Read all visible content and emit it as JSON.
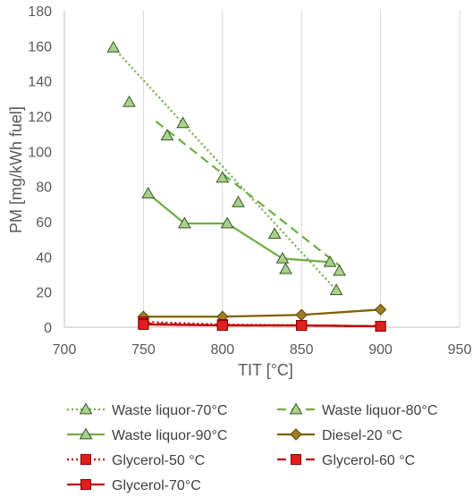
{
  "chart_data": {
    "type": "line",
    "xlabel": "TIT [°C]",
    "ylabel": "PM [mg/kWh fuel]",
    "xlim": [
      700,
      950
    ],
    "ylim": [
      0,
      180
    ],
    "x_ticks": [
      "700",
      "750",
      "800",
      "850",
      "900",
      "950"
    ],
    "y_ticks": [
      "0",
      "20",
      "40",
      "60",
      "80",
      "100",
      "120",
      "140",
      "160",
      "180"
    ],
    "grid": "vertical",
    "legend_position": "bottom",
    "series": [
      {
        "name": "Waste liquor-70°C",
        "color": "#70ad47",
        "marker_fill": "#a9d18e",
        "marker_edge": "#375623",
        "marker": "triangle",
        "line_style": "dotted",
        "line_points": [
          [
            731,
            159
          ],
          [
            872,
            21
          ]
        ],
        "points": [
          [
            731,
            159
          ],
          [
            741,
            128
          ],
          [
            775,
            116
          ],
          [
            810,
            71
          ],
          [
            872,
            21
          ]
        ]
      },
      {
        "name": "Waste liquor-80°C",
        "color": "#70ad47",
        "marker_fill": "#a9d18e",
        "marker_edge": "#375623",
        "marker": "triangle",
        "line_style": "dashed",
        "line_points": [
          [
            758,
            117
          ],
          [
            874,
            35
          ]
        ],
        "points": [
          [
            765,
            109
          ],
          [
            800,
            85
          ],
          [
            833,
            53
          ],
          [
            874,
            32
          ]
        ]
      },
      {
        "name": "Waste liquor-90°C",
        "color": "#70ad47",
        "marker_fill": "#a9d18e",
        "marker_edge": "#375623",
        "marker": "triangle",
        "line_style": "solid",
        "line_points": [
          [
            753,
            76
          ],
          [
            776,
            59
          ],
          [
            803,
            59
          ],
          [
            838,
            39
          ],
          [
            868,
            37
          ]
        ],
        "points": [
          [
            753,
            76
          ],
          [
            776,
            59
          ],
          [
            803,
            59
          ],
          [
            838,
            39
          ],
          [
            840,
            33
          ],
          [
            868,
            37
          ]
        ]
      },
      {
        "name": "Diesel-20 °C",
        "color": "#806000",
        "marker_fill": "#a07c28",
        "marker_edge": "#5a4300",
        "marker": "diamond",
        "line_style": "solid",
        "line_points": [
          [
            750,
            6
          ],
          [
            800,
            6
          ],
          [
            850,
            7
          ],
          [
            900,
            10
          ]
        ],
        "points": [
          [
            750,
            6
          ],
          [
            800,
            6
          ],
          [
            850,
            7
          ],
          [
            900,
            10
          ]
        ]
      },
      {
        "name": "Glycerol-50 °C",
        "color": "#c00000",
        "marker_fill": "#e02020",
        "marker_edge": "#8b0000",
        "marker": "square",
        "line_style": "dotted",
        "line_points": [
          [
            750,
            3
          ],
          [
            800,
            1.5
          ],
          [
            850,
            1
          ],
          [
            900,
            0.5
          ]
        ],
        "points": [
          [
            750,
            3
          ],
          [
            800,
            1.5
          ],
          [
            850,
            1
          ],
          [
            900,
            0.5
          ]
        ]
      },
      {
        "name": "Glycerol-60 °C",
        "color": "#c00000",
        "marker_fill": "#e02020",
        "marker_edge": "#8b0000",
        "marker": "square",
        "line_style": "dashed",
        "line_points": [
          [
            750,
            2
          ],
          [
            800,
            1
          ],
          [
            850,
            1
          ],
          [
            900,
            0.5
          ]
        ],
        "points": [
          [
            750,
            2
          ],
          [
            800,
            1
          ],
          [
            850,
            1
          ],
          [
            900,
            0.5
          ]
        ]
      },
      {
        "name": "Glycerol-70°C",
        "color": "#c00000",
        "marker_fill": "#e02020",
        "marker_edge": "#8b0000",
        "marker": "square",
        "line_style": "solid",
        "line_points": [
          [
            750,
            1.5
          ],
          [
            800,
            1
          ],
          [
            850,
            1
          ],
          [
            900,
            0.5
          ]
        ],
        "points": [
          [
            750,
            1.5
          ],
          [
            800,
            1
          ],
          [
            850,
            1
          ],
          [
            900,
            0.5
          ]
        ]
      }
    ]
  }
}
